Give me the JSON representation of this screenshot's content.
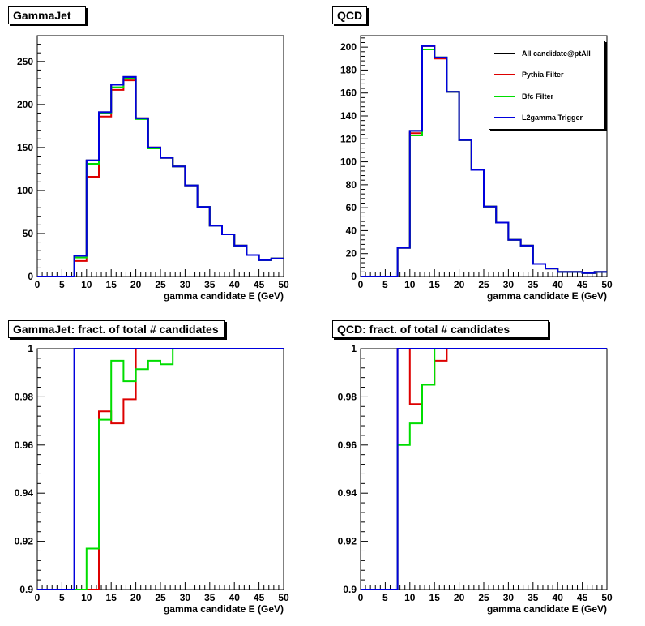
{
  "colors": {
    "all": "#000000",
    "pythia": "#dd0000",
    "bfc": "#00dd00",
    "l2": "#0000dd"
  },
  "legend": {
    "items": [
      {
        "label": "All candidate@ptAll",
        "color": "#000000"
      },
      {
        "label": "Pythia Filter",
        "color": "#dd0000"
      },
      {
        "label": "Bfc Filter",
        "color": "#00dd00"
      },
      {
        "label": "L2gamma Trigger",
        "color": "#0000dd"
      }
    ]
  },
  "chart_data": [
    {
      "type": "histogram",
      "title": "GammaJet",
      "xlabel": "gamma candidate E (GeV)",
      "ylabel": "",
      "xlim": [
        0,
        50
      ],
      "ylim": [
        0,
        280
      ],
      "xticks": [
        "0",
        "5",
        "10",
        "15",
        "20",
        "25",
        "30",
        "35",
        "40",
        "45",
        "50"
      ],
      "yticks": [
        "0",
        "50",
        "100",
        "150",
        "200",
        "250"
      ],
      "ytick_values": [
        0,
        50,
        100,
        150,
        200,
        250
      ],
      "bin_edges": [
        0,
        2.5,
        5,
        7.5,
        10,
        12.5,
        15,
        17.5,
        20,
        22.5,
        25,
        27.5,
        30,
        32.5,
        35,
        37.5,
        40,
        42.5,
        45,
        47.5,
        50
      ],
      "series": [
        {
          "name": "All candidate@ptAll",
          "color_key": "all",
          "values": [
            0,
            0,
            0,
            24,
            135,
            191,
            223,
            232,
            184,
            150,
            138,
            128,
            106,
            81,
            59,
            49,
            36,
            25,
            19,
            21
          ]
        },
        {
          "name": "Pythia Filter",
          "color_key": "pythia",
          "values": [
            0,
            0,
            0,
            18,
            116,
            186,
            217,
            228,
            184,
            150,
            138,
            128,
            106,
            81,
            59,
            49,
            36,
            25,
            19,
            21
          ]
        },
        {
          "name": "Bfc Filter",
          "color_key": "bfc",
          "values": [
            0,
            0,
            0,
            22,
            131,
            190,
            220,
            230,
            183,
            149,
            138,
            128,
            106,
            81,
            59,
            49,
            36,
            25,
            19,
            21
          ]
        },
        {
          "name": "L2gamma Trigger",
          "color_key": "l2",
          "values": [
            0,
            0,
            0,
            24,
            135,
            191,
            223,
            232,
            184,
            150,
            138,
            128,
            106,
            81,
            59,
            49,
            36,
            25,
            19,
            21
          ]
        }
      ]
    },
    {
      "type": "histogram",
      "title": "QCD",
      "xlabel": "gamma candidate E (GeV)",
      "ylabel": "",
      "xlim": [
        0,
        50
      ],
      "ylim": [
        0,
        210
      ],
      "xticks": [
        "0",
        "5",
        "10",
        "15",
        "20",
        "25",
        "30",
        "35",
        "40",
        "45",
        "50"
      ],
      "yticks": [
        "0",
        "20",
        "40",
        "60",
        "80",
        "100",
        "120",
        "140",
        "160",
        "180",
        "200"
      ],
      "ytick_values": [
        0,
        20,
        40,
        60,
        80,
        100,
        120,
        140,
        160,
        180,
        200
      ],
      "bin_edges": [
        0,
        2.5,
        5,
        7.5,
        10,
        12.5,
        15,
        17.5,
        20,
        22.5,
        25,
        27.5,
        30,
        32.5,
        35,
        37.5,
        40,
        42.5,
        45,
        47.5,
        50
      ],
      "legend": true,
      "series": [
        {
          "name": "All candidate@ptAll",
          "color_key": "all",
          "values": [
            0,
            0,
            0,
            25,
            127,
            201,
            191,
            161,
            119,
            93,
            61,
            47,
            32,
            27,
            11,
            7,
            4,
            4,
            3,
            4
          ]
        },
        {
          "name": "Pythia Filter",
          "color_key": "pythia",
          "values": [
            0,
            0,
            0,
            25,
            125,
            201,
            190,
            161,
            119,
            93,
            61,
            47,
            32,
            27,
            11,
            7,
            4,
            4,
            3,
            4
          ]
        },
        {
          "name": "Bfc Filter",
          "color_key": "bfc",
          "values": [
            0,
            0,
            0,
            25,
            123,
            198,
            191,
            161,
            119,
            93,
            61,
            47,
            32,
            27,
            11,
            7,
            4,
            4,
            3,
            4
          ]
        },
        {
          "name": "L2gamma Trigger",
          "color_key": "l2",
          "values": [
            0,
            0,
            0,
            25,
            127,
            201,
            191,
            161,
            119,
            93,
            61,
            47,
            32,
            27,
            11,
            7,
            4,
            4,
            3,
            4
          ]
        }
      ]
    },
    {
      "type": "histogram",
      "title": "GammaJet: fract. of total # candidates",
      "xlabel": "gamma candidate E (GeV)",
      "ylabel": "",
      "xlim": [
        0,
        50
      ],
      "ylim": [
        0.9,
        1.0
      ],
      "xticks": [
        "0",
        "5",
        "10",
        "15",
        "20",
        "25",
        "30",
        "35",
        "40",
        "45",
        "50"
      ],
      "yticks": [
        "0.9",
        "0.92",
        "0.94",
        "0.96",
        "0.98",
        "1"
      ],
      "ytick_values": [
        0.9,
        0.92,
        0.94,
        0.96,
        0.98,
        1.0
      ],
      "bin_edges": [
        0,
        2.5,
        5,
        7.5,
        10,
        12.5,
        15,
        17.5,
        20,
        22.5,
        25,
        27.5,
        30,
        32.5,
        35,
        37.5,
        40,
        42.5,
        45,
        47.5,
        50
      ],
      "series": [
        {
          "name": "Pythia Filter",
          "color_key": "pythia",
          "values": [
            0.9,
            0.9,
            0.9,
            0.9,
            0.9,
            0.974,
            0.969,
            0.979,
            1.0,
            1.0,
            1.0,
            1.0,
            1.0,
            1.0,
            1.0,
            1.0,
            1.0,
            1.0,
            1.0,
            1.0
          ]
        },
        {
          "name": "Bfc Filter",
          "color_key": "bfc",
          "values": [
            0.9,
            0.9,
            0.9,
            0.9,
            0.917,
            0.9705,
            0.995,
            0.9865,
            0.9915,
            0.995,
            0.9935,
            1.0,
            1.0,
            1.0,
            1.0,
            1.0,
            1.0,
            1.0,
            1.0,
            1.0
          ]
        },
        {
          "name": "L2gamma Trigger",
          "color_key": "l2",
          "values": [
            0.9,
            0.9,
            0.9,
            1.0,
            1.0,
            1.0,
            1.0,
            1.0,
            1.0,
            1.0,
            1.0,
            1.0,
            1.0,
            1.0,
            1.0,
            1.0,
            1.0,
            1.0,
            1.0,
            1.0
          ]
        }
      ]
    },
    {
      "type": "histogram",
      "title": "QCD: fract. of total # candidates",
      "xlabel": "gamma candidate E (GeV)",
      "ylabel": "",
      "xlim": [
        0,
        50
      ],
      "ylim": [
        0.9,
        1.0
      ],
      "xticks": [
        "0",
        "5",
        "10",
        "15",
        "20",
        "25",
        "30",
        "35",
        "40",
        "45",
        "50"
      ],
      "yticks": [
        "0.9",
        "0.92",
        "0.94",
        "0.96",
        "0.98",
        "1"
      ],
      "ytick_values": [
        0.9,
        0.92,
        0.94,
        0.96,
        0.98,
        1.0
      ],
      "bin_edges": [
        0,
        2.5,
        5,
        7.5,
        10,
        12.5,
        15,
        17.5,
        20,
        22.5,
        25,
        27.5,
        30,
        32.5,
        35,
        37.5,
        40,
        42.5,
        45,
        47.5,
        50
      ],
      "series": [
        {
          "name": "Pythia Filter",
          "color_key": "pythia",
          "values": [
            0.9,
            0.9,
            0.9,
            1.0,
            0.977,
            0.985,
            0.995,
            1.0,
            1.0,
            1.0,
            1.0,
            1.0,
            1.0,
            1.0,
            1.0,
            1.0,
            1.0,
            1.0,
            1.0,
            1.0
          ]
        },
        {
          "name": "Bfc Filter",
          "color_key": "bfc",
          "values": [
            0.9,
            0.9,
            0.9,
            0.96,
            0.969,
            0.985,
            1.0,
            1.0,
            1.0,
            1.0,
            1.0,
            1.0,
            1.0,
            1.0,
            1.0,
            1.0,
            1.0,
            1.0,
            1.0,
            1.0
          ]
        },
        {
          "name": "L2gamma Trigger",
          "color_key": "l2",
          "values": [
            0.9,
            0.9,
            0.9,
            1.0,
            1.0,
            1.0,
            1.0,
            1.0,
            1.0,
            1.0,
            1.0,
            1.0,
            1.0,
            1.0,
            1.0,
            1.0,
            1.0,
            1.0,
            1.0,
            1.0
          ]
        }
      ]
    }
  ]
}
